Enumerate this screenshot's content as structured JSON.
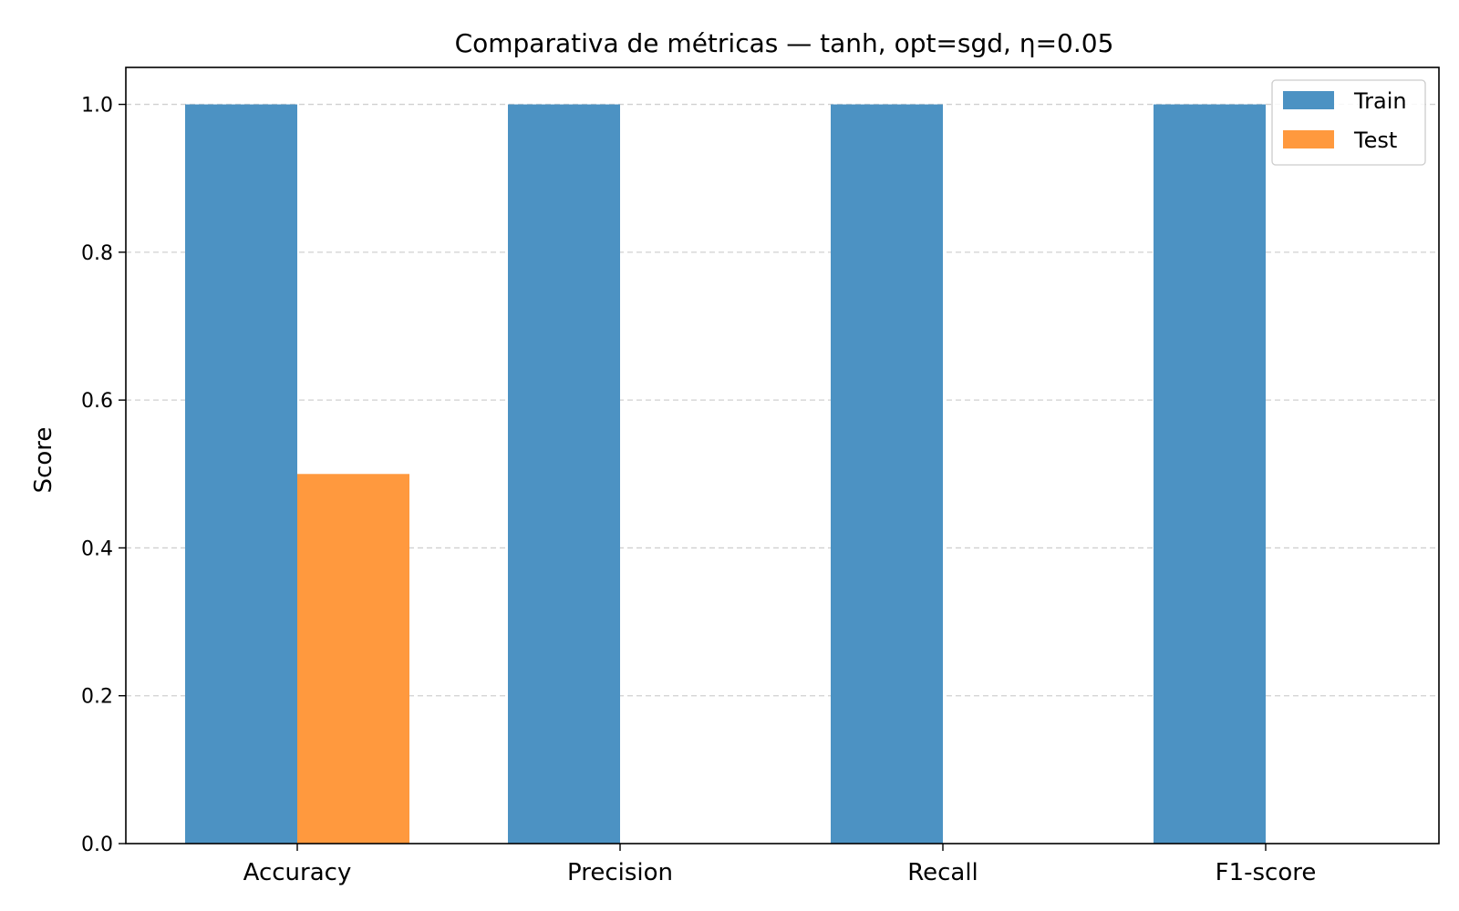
{
  "chart_data": {
    "type": "bar",
    "title": "Comparativa de métricas — tanh, opt=sgd, η=0.05",
    "xlabel": "",
    "ylabel": "Score",
    "categories": [
      "Accuracy",
      "Precision",
      "Recall",
      "F1-score"
    ],
    "series": [
      {
        "name": "Train",
        "values": [
          1.0,
          1.0,
          1.0,
          1.0
        ],
        "color": "#4c92c3"
      },
      {
        "name": "Test",
        "values": [
          0.5,
          0.0,
          0.0,
          0.0
        ],
        "color": "#ff993e"
      }
    ],
    "ylim": [
      0,
      1.05
    ],
    "yticks": [
      0.0,
      0.2,
      0.4,
      0.6,
      0.8,
      1.0
    ],
    "ytick_labels": [
      "0.0",
      "0.2",
      "0.4",
      "0.6",
      "0.8",
      "1.0"
    ],
    "grid": "y-dashed",
    "legend_position": "top-right"
  }
}
